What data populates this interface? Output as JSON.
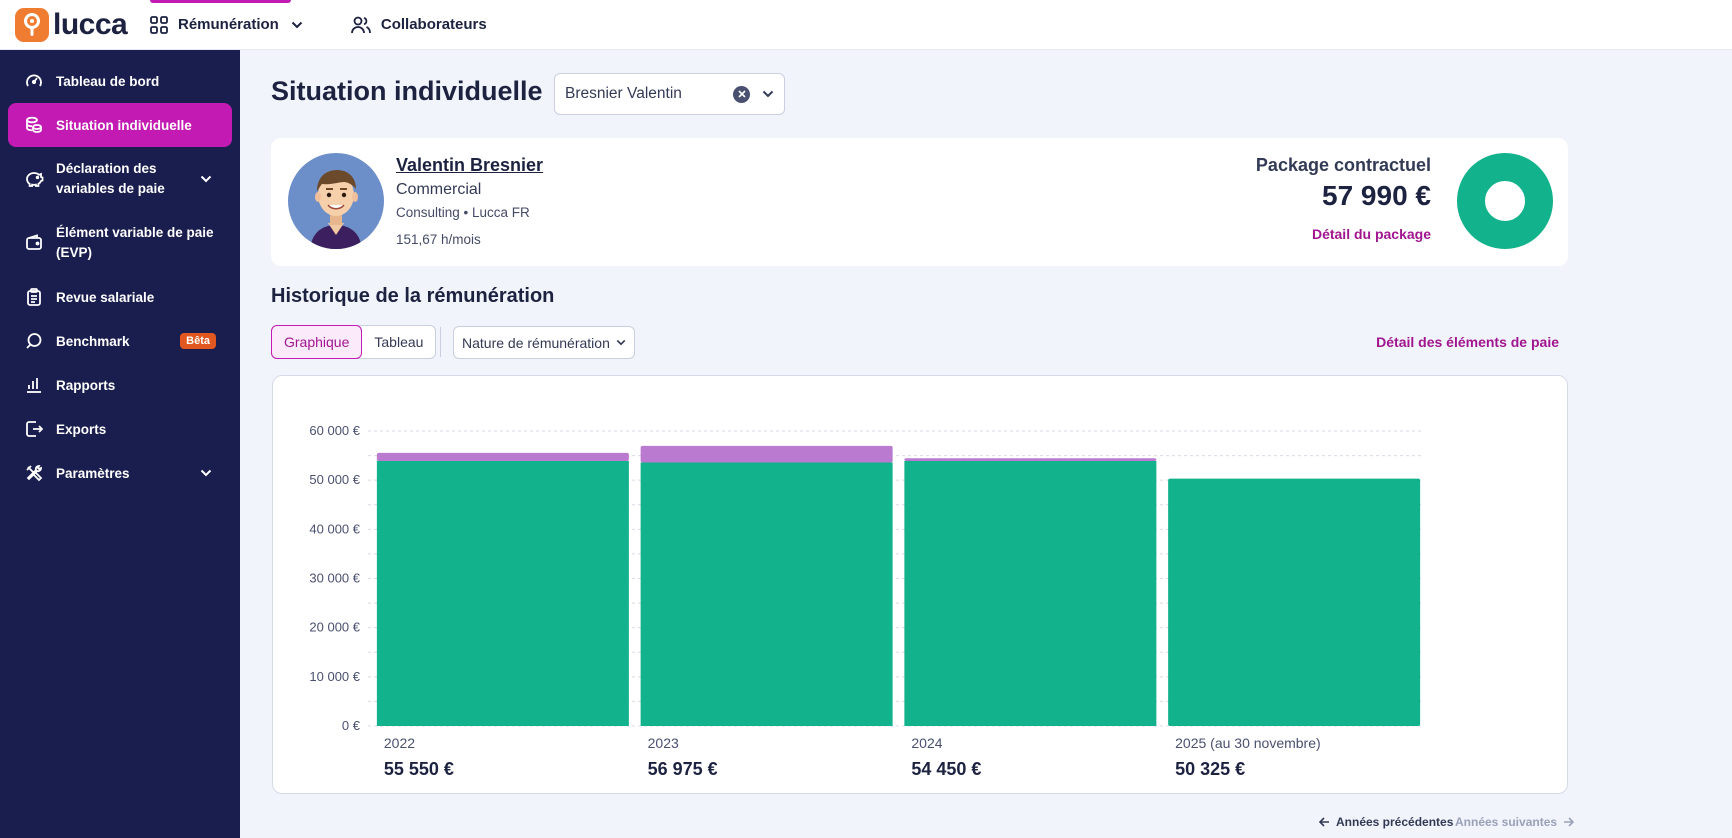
{
  "app": {
    "logo_text": "lucca"
  },
  "topnav": {
    "items": [
      {
        "label": "Rémunération",
        "icon": "grid-icon",
        "active": true
      },
      {
        "label": "Collaborateurs",
        "icon": "users-icon",
        "active": false
      }
    ]
  },
  "sidebar": {
    "items": [
      {
        "label": "Tableau de bord",
        "icon": "gauge-icon"
      },
      {
        "label": "Situation individuelle",
        "icon": "coins-icon",
        "active": true
      },
      {
        "label": "Déclaration des variables de paie",
        "icon": "piggy-bank-icon",
        "expandable": true
      },
      {
        "label": "Élément variable de paie (EVP)",
        "icon": "wallet-icon"
      },
      {
        "label": "Revue salariale",
        "icon": "clipboard-icon"
      },
      {
        "label": "Benchmark",
        "icon": "search-icon",
        "badge": "Bêta"
      },
      {
        "label": "Rapports",
        "icon": "bar-chart-icon"
      },
      {
        "label": "Exports",
        "icon": "export-icon"
      },
      {
        "label": "Paramètres",
        "icon": "tools-icon",
        "expandable": true
      }
    ]
  },
  "main": {
    "title": "Situation individuelle",
    "employee_select": {
      "value": "Bresnier Valentin"
    },
    "employee": {
      "name": "Valentin Bresnier",
      "role": "Commercial",
      "department": "Consulting • Lucca FR",
      "hours": "151,67 h/mois"
    },
    "package": {
      "title": "Package contractuel",
      "value": "57 990 €",
      "link": "Détail du package",
      "color": "#12b28c"
    },
    "history": {
      "title": "Historique de la rémunération",
      "view_toggle": [
        "Graphique",
        "Tableau"
      ],
      "active_view": "Graphique",
      "nature_filter": "Nature de rémunération",
      "details_link": "Détail des éléments de paie"
    },
    "pager": {
      "prev": "Années précédentes",
      "next": "Années suivantes"
    }
  },
  "chart_data": {
    "type": "bar",
    "stacked": true,
    "categories": [
      "2022",
      "2023",
      "2024",
      "2025 (au 30 novembre)"
    ],
    "totals": [
      "55 550 €",
      "56 975 €",
      "54 450 €",
      "50 325 €"
    ],
    "series": [
      {
        "values": [
          53900,
          53600,
          53900,
          50325
        ],
        "color": "#12b28c"
      },
      {
        "values": [
          1650,
          3375,
          550,
          0
        ],
        "color": "#b97ad0"
      }
    ],
    "ylim": [
      0,
      60000
    ],
    "yticks": [
      "0 €",
      "10 000 €",
      "20 000 €",
      "30 000 €",
      "40 000 €",
      "50 000 €",
      "60 000 €"
    ],
    "grid": true
  }
}
